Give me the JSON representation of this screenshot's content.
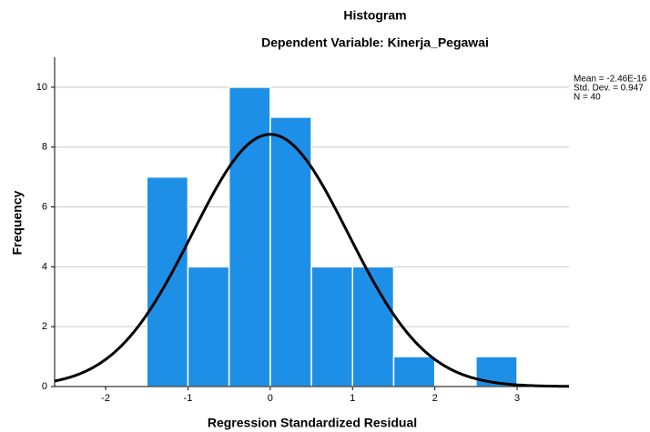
{
  "chart_data": {
    "type": "histogram",
    "title": "Histogram",
    "subtitle": "Dependent Variable: Kinerja_Pegawai",
    "x_label": "Regression Standardized Residual",
    "y_label": "Frequency",
    "bins": [
      -1.5,
      -1,
      -0.5,
      0,
      0.5,
      1,
      1.5,
      2,
      2.5,
      3
    ],
    "values": [
      7,
      4,
      10,
      9,
      4,
      4,
      1,
      0,
      1
    ],
    "color": "#1e8fe6",
    "xlim": [
      -2.62,
      3.63
    ],
    "xticks": [
      -2,
      -1,
      0,
      1,
      2,
      3
    ],
    "ylim": [
      0,
      11
    ],
    "yticks": [
      0,
      2,
      4,
      6,
      8,
      10
    ],
    "grid": true,
    "stats": [
      {
        "label": "Mean = -2.46E-16",
        "value": -2.46e-16
      },
      {
        "label": "Std. Dev. = 0.947",
        "value": 0.947
      },
      {
        "label": "N = 40",
        "value": 40
      }
    ]
  }
}
